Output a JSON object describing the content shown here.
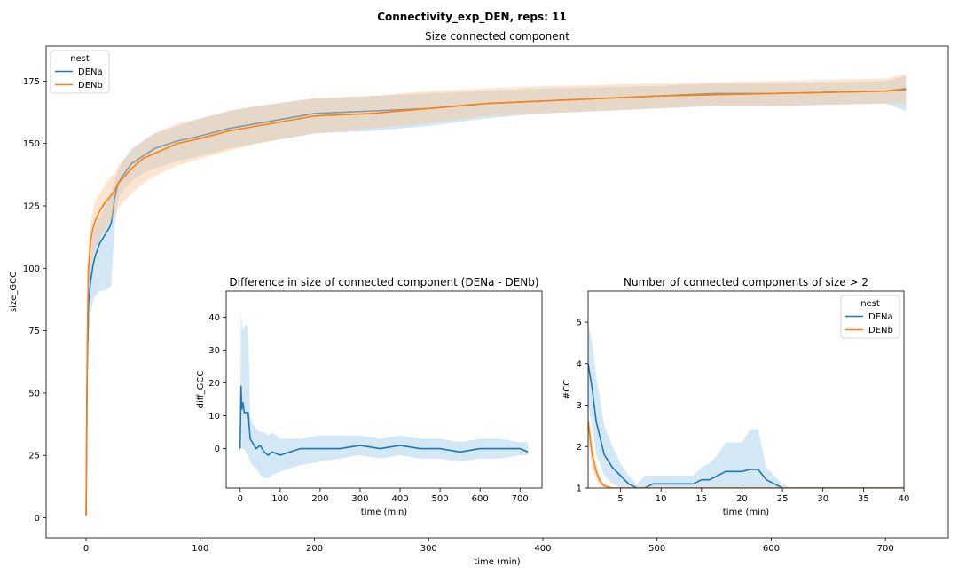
{
  "figure": {
    "suptitle": "Connectivity_exp_DEN, reps: 11"
  },
  "colors": {
    "DENa": "#1f77b4",
    "DENb": "#ff7f0e",
    "DENa_band": "#9ecae9",
    "DENb_band": "#fdc695"
  },
  "chart_data": [
    {
      "id": "main",
      "type": "line",
      "title": "Size connected component",
      "xlabel": "time (min)",
      "ylabel": "size_GCC",
      "xlim": [
        -35,
        755
      ],
      "ylim": [
        -8,
        189
      ],
      "xticks": [
        0,
        100,
        200,
        300,
        400,
        500,
        600,
        700
      ],
      "yticks": [
        0,
        25,
        50,
        75,
        100,
        125,
        150,
        175
      ],
      "legend": {
        "title": "nest",
        "position": "upper-left",
        "entries": [
          "DENa",
          "DENb"
        ]
      },
      "series": [
        {
          "name": "DENa",
          "x": [
            0,
            1,
            2,
            4,
            6,
            8,
            12,
            16,
            20,
            22,
            25,
            28,
            32,
            40,
            50,
            60,
            80,
            100,
            125,
            150,
            200,
            250,
            300,
            350,
            400,
            450,
            500,
            550,
            600,
            650,
            700,
            718
          ],
          "y": [
            1,
            60,
            85,
            95,
            101,
            105,
            110,
            113,
            116,
            118,
            128,
            134,
            137,
            142,
            145,
            148,
            151,
            153,
            156,
            158,
            162,
            163,
            164,
            166,
            167,
            168,
            169,
            170,
            170,
            170.5,
            171,
            171.5
          ],
          "lower": [
            1,
            45,
            70,
            82,
            87,
            89,
            91,
            91,
            92,
            93,
            117,
            128,
            131,
            135,
            138,
            140,
            143,
            145,
            148,
            150,
            154,
            155,
            157,
            160,
            162,
            163,
            164,
            165,
            165,
            165.5,
            166,
            163
          ],
          "upper": [
            1,
            75,
            100,
            107,
            113,
            117,
            120,
            124,
            128,
            131,
            135,
            139,
            143,
            148,
            151,
            154,
            157,
            160,
            163,
            165,
            168,
            169,
            170,
            171,
            172,
            172.5,
            173,
            174,
            174,
            174.5,
            175,
            177
          ]
        },
        {
          "name": "DENb",
          "x": [
            0,
            1,
            2,
            4,
            6,
            8,
            12,
            16,
            20,
            25,
            28,
            32,
            40,
            50,
            60,
            80,
            100,
            125,
            150,
            200,
            250,
            300,
            350,
            400,
            450,
            500,
            550,
            600,
            650,
            700,
            718
          ],
          "y": [
            1,
            70,
            100,
            111,
            116,
            119,
            123,
            126,
            128,
            131,
            134,
            136,
            140,
            144,
            146,
            150,
            152,
            155,
            157,
            161,
            162,
            164,
            166,
            167,
            168,
            169,
            169.5,
            170,
            170.5,
            171,
            172
          ],
          "lower": [
            1,
            55,
            90,
            100,
            105,
            108,
            112,
            115,
            118,
            121,
            124,
            126,
            130,
            134,
            137,
            141,
            144,
            147,
            150,
            154,
            156,
            158,
            161,
            162,
            163,
            164,
            165,
            165,
            165.5,
            166,
            166
          ],
          "upper": [
            1,
            85,
            110,
            118,
            123,
            127,
            130,
            133,
            136,
            138,
            141,
            143,
            147,
            151,
            154,
            158,
            160,
            163,
            165,
            168,
            169,
            171,
            172,
            173,
            173.5,
            174,
            174.5,
            175,
            175.5,
            176,
            178
          ]
        }
      ]
    },
    {
      "id": "inset_diff",
      "type": "line",
      "title": "Difference in size of connected component (DENa - DENb)",
      "xlabel": "time (min)",
      "ylabel": "diff_GCC",
      "xlim": [
        -35,
        755
      ],
      "ylim": [
        -12,
        48
      ],
      "xticks": [
        0,
        100,
        200,
        300,
        400,
        500,
        600,
        700
      ],
      "yticks": [
        0,
        10,
        20,
        30,
        40
      ],
      "series": [
        {
          "name": "DENa",
          "x": [
            0,
            2,
            4,
            7,
            10,
            15,
            20,
            25,
            30,
            40,
            50,
            60,
            70,
            80,
            100,
            125,
            150,
            200,
            250,
            300,
            350,
            400,
            450,
            500,
            550,
            600,
            650,
            700,
            720
          ],
          "y": [
            0,
            19,
            12,
            14,
            11,
            11,
            11,
            3,
            2,
            0,
            1,
            -1,
            -2,
            -1,
            -2,
            -1,
            0,
            0,
            0,
            1,
            0,
            1,
            0,
            0,
            -1,
            0,
            0,
            0,
            -1
          ],
          "lower": [
            0,
            10,
            0,
            0,
            0,
            -1,
            -2,
            -4,
            -5,
            -6,
            -8,
            -9,
            -9,
            -8,
            -7,
            -6,
            -5,
            -4,
            -3,
            -2,
            -3,
            -2,
            -3,
            -3,
            -4,
            -3,
            -3,
            -2,
            -2
          ],
          "upper": [
            0,
            42,
            38,
            36,
            37,
            38,
            37,
            10,
            8,
            6,
            5,
            5,
            4,
            5,
            3,
            3,
            3,
            4,
            4,
            4,
            3,
            4,
            3,
            3,
            2,
            3,
            3,
            2,
            2
          ]
        }
      ]
    },
    {
      "id": "inset_cc",
      "type": "line",
      "title": "Number of connected components of size > 2",
      "xlabel": "time (min)",
      "ylabel": "#CC",
      "xlim": [
        1,
        40
      ],
      "ylim": [
        1,
        5.75
      ],
      "xticks": [
        5,
        10,
        15,
        20,
        25,
        30,
        35,
        40
      ],
      "yticks": [
        1,
        2,
        3,
        4,
        5
      ],
      "legend": {
        "title": "nest",
        "position": "upper-right",
        "entries": [
          "DENa",
          "DENb"
        ]
      },
      "series": [
        {
          "name": "DENa",
          "x": [
            1,
            1.5,
            2,
            3,
            4,
            5,
            6,
            7,
            8,
            9,
            10,
            11,
            12,
            13,
            14,
            15,
            16,
            17,
            18,
            19,
            20,
            21,
            22,
            23,
            24,
            25,
            26,
            27,
            30,
            35,
            40
          ],
          "y": [
            4,
            3.4,
            2.6,
            1.8,
            1.5,
            1.3,
            1.1,
            1.0,
            1.0,
            1.1,
            1.1,
            1.1,
            1.1,
            1.1,
            1.1,
            1.2,
            1.2,
            1.3,
            1.4,
            1.4,
            1.4,
            1.45,
            1.45,
            1.2,
            1.1,
            1.0,
            1.0,
            1.0,
            1.0,
            1.0,
            1.0
          ],
          "lower": [
            3.0,
            2.5,
            1.8,
            1.3,
            1.1,
            1.0,
            1.0,
            1.0,
            1.0,
            1.0,
            1.0,
            1.0,
            1.0,
            1.0,
            1.0,
            1.0,
            1.0,
            1.0,
            1.0,
            1.0,
            1.0,
            1.0,
            1.0,
            1.0,
            1.0,
            1.0,
            1.0,
            1.0,
            1.0,
            1.0,
            1.0
          ],
          "upper": [
            5.0,
            4.5,
            3.7,
            2.5,
            2.0,
            1.6,
            1.3,
            1.1,
            1.3,
            1.3,
            1.3,
            1.3,
            1.3,
            1.3,
            1.3,
            1.5,
            1.6,
            1.8,
            2.1,
            2.1,
            2.1,
            2.4,
            2.4,
            1.5,
            1.3,
            1.1,
            1.0,
            1.0,
            1.0,
            1.0,
            1.0
          ]
        },
        {
          "name": "DENb",
          "x": [
            1,
            1.5,
            2,
            2.5,
            3,
            4,
            5,
            40
          ],
          "y": [
            2.6,
            1.8,
            1.4,
            1.15,
            1.05,
            1.0,
            1.0,
            1.0
          ],
          "lower": [
            2.2,
            1.5,
            1.2,
            1.05,
            1.0,
            1.0,
            1.0,
            1.0
          ],
          "upper": [
            3.0,
            2.1,
            1.6,
            1.25,
            1.1,
            1.0,
            1.0,
            1.0
          ]
        }
      ]
    }
  ]
}
